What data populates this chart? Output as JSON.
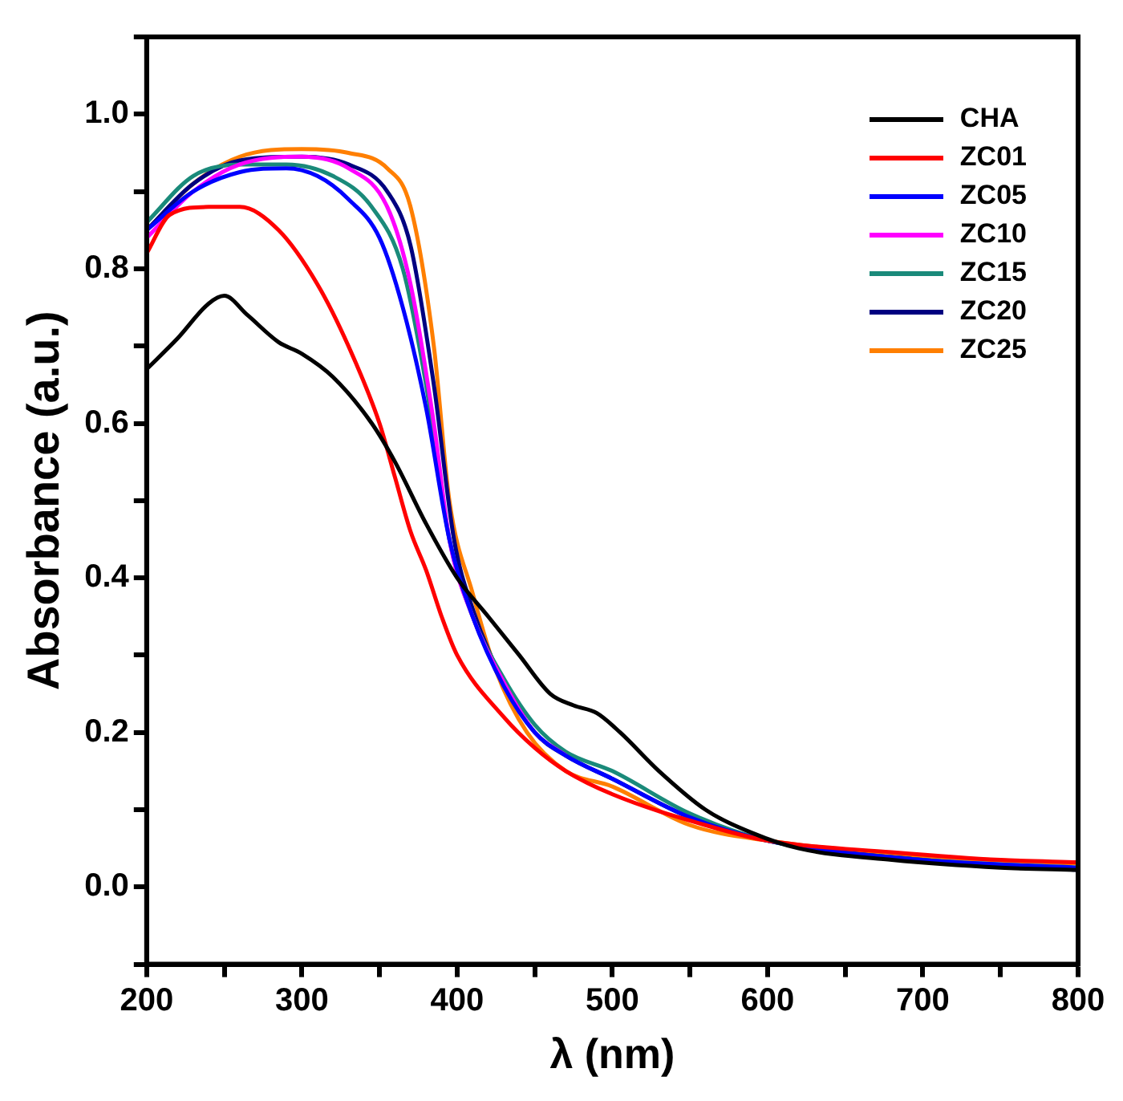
{
  "chart_data": {
    "type": "line",
    "xlabel": "λ (nm)",
    "ylabel": "Absorbance (a.u.)",
    "xlim": [
      200,
      800
    ],
    "ylim": [
      -0.1,
      1.1
    ],
    "xticks": [
      200,
      {
        "value": 250,
        "label": null
      },
      300,
      {
        "value": 350,
        "label": null
      },
      400,
      {
        "value": 450,
        "label": null
      },
      500,
      {
        "value": 550,
        "label": null
      },
      600,
      {
        "value": 650,
        "label": null
      },
      700,
      {
        "value": 750,
        "label": null
      },
      800
    ],
    "yticks": [
      {
        "value": -0.1,
        "label": null
      },
      {
        "value": 0,
        "label": "0.0"
      },
      {
        "value": 0.1,
        "label": null
      },
      {
        "value": 0.2,
        "label": "0.2"
      },
      {
        "value": 0.3,
        "label": null
      },
      {
        "value": 0.4,
        "label": "0.4"
      },
      {
        "value": 0.5,
        "label": null
      },
      {
        "value": 0.6,
        "label": "0.6"
      },
      {
        "value": 0.7,
        "label": null
      },
      {
        "value": 0.8,
        "label": "0.8"
      },
      {
        "value": 0.9,
        "label": null
      },
      {
        "value": 1.0,
        "label": "1.0"
      },
      {
        "value": 1.1,
        "label": null
      }
    ],
    "grid": false,
    "legend": "top right",
    "marker": "none",
    "line_style": "solid",
    "series": [
      {
        "name": "CHA",
        "color": "#000000",
        "x": [
          200,
          220,
          240,
          250,
          265,
          285,
          300,
          320,
          345,
          360,
          380,
          400,
          420,
          440,
          460,
          475,
          490,
          505,
          530,
          560,
          590,
          620,
          680,
          750,
          800
        ],
        "values": [
          0.67,
          0.71,
          0.755,
          0.765,
          0.74,
          0.705,
          0.69,
          0.66,
          0.6,
          0.55,
          0.47,
          0.4,
          0.35,
          0.3,
          0.25,
          0.235,
          0.225,
          0.2,
          0.15,
          0.1,
          0.07,
          0.05,
          0.035,
          0.025,
          0.022
        ]
      },
      {
        "name": "ZC01",
        "color": "#ff0000",
        "x": [
          200,
          215,
          240,
          260,
          285,
          310,
          330,
          350,
          360,
          370,
          380,
          390,
          400,
          430,
          450,
          470,
          500,
          560,
          600,
          680,
          750,
          800
        ],
        "values": [
          0.82,
          0.87,
          0.88,
          0.88,
          0.85,
          0.78,
          0.7,
          0.6,
          0.53,
          0.46,
          0.41,
          0.35,
          0.3,
          0.22,
          0.18,
          0.15,
          0.12,
          0.08,
          0.06,
          0.045,
          0.035,
          0.032
        ]
      },
      {
        "name": "ZC05",
        "color": "#0000ff",
        "x": [
          200,
          230,
          260,
          290,
          310,
          330,
          350,
          365,
          380,
          395,
          410,
          430,
          450,
          470,
          500,
          550,
          600,
          700,
          800
        ],
        "values": [
          0.85,
          0.9,
          0.925,
          0.93,
          0.92,
          0.89,
          0.84,
          0.75,
          0.62,
          0.45,
          0.35,
          0.26,
          0.2,
          0.17,
          0.14,
          0.09,
          0.06,
          0.035,
          0.025
        ]
      },
      {
        "name": "ZC10",
        "color": "#ff00ff",
        "x": [
          200,
          230,
          260,
          300,
          330,
          355,
          370,
          385,
          395,
          410,
          430,
          450,
          470
        ],
        "values": [
          0.84,
          0.9,
          0.935,
          0.945,
          0.93,
          0.88,
          0.78,
          0.6,
          0.45,
          0.35,
          0.265,
          0.2,
          0.17
        ]
      },
      {
        "name": "ZC15",
        "color": "#1a8a7a",
        "x": [
          200,
          230,
          260,
          290,
          320,
          345,
          365,
          380,
          395,
          410,
          430,
          450,
          470,
          500,
          550,
          600,
          700,
          800
        ],
        "values": [
          0.86,
          0.92,
          0.935,
          0.935,
          0.92,
          0.88,
          0.8,
          0.65,
          0.45,
          0.35,
          0.27,
          0.21,
          0.175,
          0.15,
          0.095,
          0.06,
          0.035,
          0.025
        ]
      },
      {
        "name": "ZC20",
        "color": "#000080",
        "x": [
          200,
          230,
          260,
          300,
          330,
          355,
          370,
          385,
          398,
          410,
          430,
          450,
          470,
          500,
          550,
          600,
          700,
          800
        ],
        "values": [
          0.85,
          0.91,
          0.94,
          0.945,
          0.935,
          0.9,
          0.83,
          0.65,
          0.45,
          0.36,
          0.265,
          0.2,
          0.17,
          0.14,
          0.09,
          0.06,
          0.035,
          0.022
        ]
      },
      {
        "name": "ZC25",
        "color": "#ff7f00",
        "x": [
          200,
          230,
          260,
          300,
          330,
          355,
          370,
          385,
          395,
          410,
          425,
          445,
          470,
          500,
          550,
          600,
          700,
          800
        ],
        "values": [
          0.85,
          0.91,
          0.945,
          0.955,
          0.95,
          0.93,
          0.88,
          0.7,
          0.5,
          0.38,
          0.28,
          0.2,
          0.15,
          0.13,
          0.08,
          0.06,
          0.04,
          0.03
        ]
      }
    ]
  }
}
